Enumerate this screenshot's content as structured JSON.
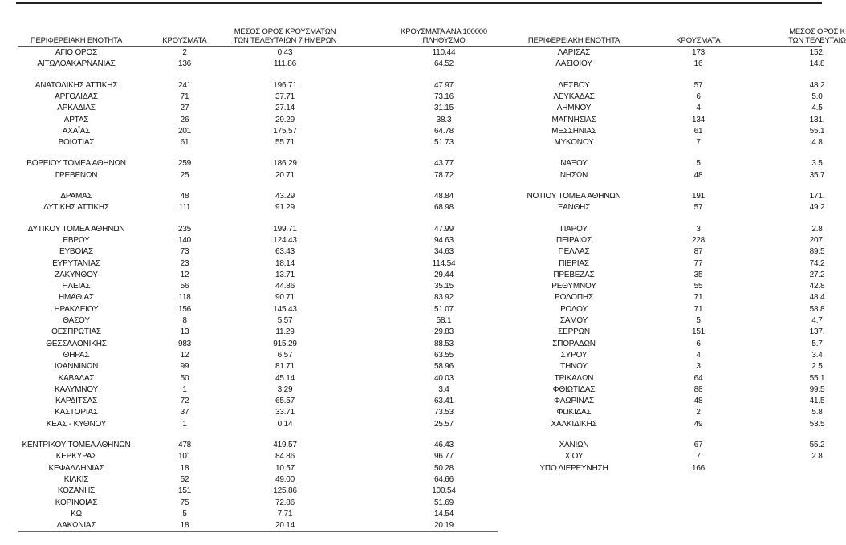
{
  "left": {
    "headers": {
      "region": "ΠΕΡΙΦΕΡΕΙΑΚΗ ΕΝΟΤΗΤΑ",
      "cases": "ΚΡΟΥΣΜΑΤΑ",
      "avg_line1": "ΜΕΣΟΣ ΟΡΟΣ ΚΡΟΥΣΜΑΤΩΝ",
      "avg_line2": "ΤΩΝ ΤΕΛΕΥΤΑΙΩΝ 7 ΗΜΕΡΩΝ",
      "per100k_line1": "ΚΡΟΥΣΜΑΤΑ ΑΝΑ 100000",
      "per100k_line2": "ΠΛΗΘΥΣΜΟ"
    },
    "rows": [
      [
        "ΑΓΙΟ ΟΡΟΣ",
        "2",
        "0.43",
        "110.44"
      ],
      [
        "ΑΙΤΩΛΟΑΚΑΡΝΑΝΙΑΣ",
        "136",
        "111.86",
        "64.52"
      ],
      null,
      [
        "ΑΝΑΤΟΛΙΚΗΣ ΑΤΤΙΚΗΣ",
        "241",
        "196.71",
        "47.97"
      ],
      [
        "ΑΡΓΟΛΙΔΑΣ",
        "71",
        "37.71",
        "73.16"
      ],
      [
        "ΑΡΚΑΔΙΑΣ",
        "27",
        "27.14",
        "31.15"
      ],
      [
        "ΑΡΤΑΣ",
        "26",
        "29.29",
        "38.3"
      ],
      [
        "ΑΧΑΪΑΣ",
        "201",
        "175.57",
        "64.78"
      ],
      [
        "ΒΟΙΩΤΙΑΣ",
        "61",
        "55.71",
        "51.73"
      ],
      null,
      [
        "ΒΟΡΕΙΟΥ ΤΟΜΕΑ ΑΘΗΝΩΝ",
        "259",
        "186.29",
        "43.77"
      ],
      [
        "ΓΡΕΒΕΝΩΝ",
        "25",
        "20.71",
        "78.72"
      ],
      null,
      [
        "ΔΡΑΜΑΣ",
        "48",
        "43.29",
        "48.84"
      ],
      [
        "ΔΥΤΙΚΗΣ ΑΤΤΙΚΗΣ",
        "111",
        "91.29",
        "68.98"
      ],
      null,
      [
        "ΔΥΤΙΚΟΥ ΤΟΜΕΑ ΑΘΗΝΩΝ",
        "235",
        "199.71",
        "47.99"
      ],
      [
        "ΕΒΡΟΥ",
        "140",
        "124.43",
        "94.63"
      ],
      [
        "ΕΥΒΟΙΑΣ",
        "73",
        "63.43",
        "34.63"
      ],
      [
        "ΕΥΡΥΤΑΝΙΑΣ",
        "23",
        "18.14",
        "114.54"
      ],
      [
        "ΖΑΚΥΝΘΟΥ",
        "12",
        "13.71",
        "29.44"
      ],
      [
        "ΗΛΕΙΑΣ",
        "56",
        "44.86",
        "35.15"
      ],
      [
        "ΗΜΑΘΙΑΣ",
        "118",
        "90.71",
        "83.92"
      ],
      [
        "ΗΡΑΚΛΕΙΟΥ",
        "156",
        "145.43",
        "51.07"
      ],
      [
        "ΘΑΣΟΥ",
        "8",
        "5.57",
        "58.1"
      ],
      [
        "ΘΕΣΠΡΩΤΙΑΣ",
        "13",
        "11.29",
        "29.83"
      ],
      [
        "ΘΕΣΣΑΛΟΝΙΚΗΣ",
        "983",
        "915.29",
        "88.53"
      ],
      [
        "ΘΗΡΑΣ",
        "12",
        "6.57",
        "63.55"
      ],
      [
        "ΙΩΑΝΝΙΝΩΝ",
        "99",
        "81.71",
        "58.96"
      ],
      [
        "ΚΑΒΑΛΑΣ",
        "50",
        "45.14",
        "40.03"
      ],
      [
        "ΚΑΛΥΜΝΟΥ",
        "1",
        "3.29",
        "3.4"
      ],
      [
        "ΚΑΡΔΙΤΣΑΣ",
        "72",
        "65.57",
        "63.41"
      ],
      [
        "ΚΑΣΤΟΡΙΑΣ",
        "37",
        "33.71",
        "73.53"
      ],
      [
        "ΚΕΑΣ - ΚΥΘΝΟΥ",
        "1",
        "0.14",
        "25.57"
      ],
      null,
      [
        "ΚΕΝΤΡΙΚΟΥ ΤΟΜΕΑ ΑΘΗΝΩΝ",
        "478",
        "419.57",
        "46.43"
      ],
      [
        "ΚΕΡΚΥΡΑΣ",
        "101",
        "84.86",
        "96.77"
      ],
      [
        "ΚΕΦΑΛΛΗΝΙΑΣ",
        "18",
        "10.57",
        "50.28"
      ],
      [
        "ΚΙΛΚΙΣ",
        "52",
        "49.00",
        "64.66"
      ],
      [
        "ΚΟΖΑΝΗΣ",
        "151",
        "125.86",
        "100.54"
      ],
      [
        "ΚΟΡΙΝΘΙΑΣ",
        "75",
        "72.86",
        "51.69"
      ],
      [
        "ΚΩ",
        "5",
        "7.71",
        "14.54"
      ],
      [
        "ΛΑΚΩΝΙΑΣ",
        "18",
        "20.14",
        "20.19"
      ]
    ]
  },
  "right": {
    "headers": {
      "region": "ΠΕΡΙΦΕΡΕΙΑΚΗ ΕΝΟΤΗΤΑ",
      "cases": "ΚΡΟΥΣΜΑΤΑ",
      "avg_line1": "ΜΕΣΟΣ ΟΡΟΣ Κ",
      "avg_line2": "ΤΩΝ ΤΕΛΕΥΤΑΙΩ"
    },
    "rows": [
      [
        "ΛΑΡΙΣΑΣ",
        "173",
        "152."
      ],
      [
        "ΛΑΣΙΘΙΟΥ",
        "16",
        "14.8"
      ],
      null,
      [
        "ΛΕΣΒΟΥ",
        "57",
        "48.2"
      ],
      [
        "ΛΕΥΚΑΔΑΣ",
        "6",
        "5.0"
      ],
      [
        "ΛΗΜΝΟΥ",
        "4",
        "4.5"
      ],
      [
        "ΜΑΓΝΗΣΙΑΣ",
        "134",
        "131."
      ],
      [
        "ΜΕΣΣΗΝΙΑΣ",
        "61",
        "55.1"
      ],
      [
        "ΜΥΚΟΝΟΥ",
        "7",
        "4.8"
      ],
      null,
      [
        "ΝΑΞΟΥ",
        "5",
        "3.5"
      ],
      [
        "ΝΗΣΩΝ",
        "48",
        "35.7"
      ],
      null,
      [
        "ΝΟΤΙΟΥ ΤΟΜΕΑ ΑΘΗΝΩΝ",
        "191",
        "171."
      ],
      [
        "ΞΑΝΘΗΣ",
        "57",
        "49.2"
      ],
      null,
      [
        "ΠΑΡΟΥ",
        "3",
        "2.8"
      ],
      [
        "ΠΕΙΡΑΙΩΣ",
        "228",
        "207."
      ],
      [
        "ΠΕΛΛΑΣ",
        "87",
        "89.5"
      ],
      [
        "ΠΙΕΡΙΑΣ",
        "77",
        "74.2"
      ],
      [
        "ΠΡΕΒΕΖΑΣ",
        "35",
        "27.2"
      ],
      [
        "ΡΕΘΥΜΝΟΥ",
        "55",
        "42.8"
      ],
      [
        "ΡΟΔΟΠΗΣ",
        "71",
        "48.4"
      ],
      [
        "ΡΟΔΟΥ",
        "71",
        "58.8"
      ],
      [
        "ΣΑΜΟΥ",
        "5",
        "4.7"
      ],
      [
        "ΣΕΡΡΩΝ",
        "151",
        "137."
      ],
      [
        "ΣΠΟΡΑΔΩΝ",
        "6",
        "5.7"
      ],
      [
        "ΣΥΡΟΥ",
        "4",
        "3.4"
      ],
      [
        "ΤΗΝΟΥ",
        "3",
        "2.5"
      ],
      [
        "ΤΡΙΚΑΛΩΝ",
        "64",
        "55.1"
      ],
      [
        "ΦΘΙΩΤΙΔΑΣ",
        "88",
        "99.5"
      ],
      [
        "ΦΛΩΡΙΝΑΣ",
        "48",
        "41.5"
      ],
      [
        "ΦΩΚΙΔΑΣ",
        "2",
        "5.8"
      ],
      [
        "ΧΑΛΚΙΔΙΚΗΣ",
        "49",
        "53.5"
      ],
      null,
      [
        "ΧΑΝΙΩΝ",
        "67",
        "55.2"
      ],
      [
        "ΧΙΟΥ",
        "7",
        "2.8"
      ],
      [
        "ΥΠΟ ΔΙΕΡΕΥΝΗΣΗ",
        "166",
        null
      ]
    ]
  }
}
